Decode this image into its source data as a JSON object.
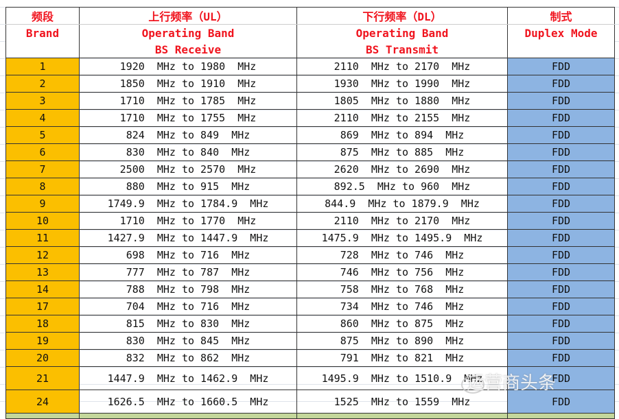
{
  "header": {
    "band": {
      "zh": "频段",
      "en": "Brand",
      "en2": ""
    },
    "ul": {
      "zh": "上行频率（UL）",
      "en": "Operating Band",
      "en2": "BS Receive"
    },
    "dl": {
      "zh": "下行频率（DL）",
      "en": "Operating Band",
      "en2": "BS Transmit"
    },
    "mode": {
      "zh": "制式",
      "en": "Duplex Mode",
      "en2": ""
    }
  },
  "colors": {
    "band_bg": "#fbbf00",
    "mode_bg": "#8db4e2",
    "header_text": "#f0141e",
    "footer_bg": "#c4d79b"
  },
  "rows": [
    {
      "band": "1",
      "ul": "1920  MHz to 1980  MHz",
      "dl": "2110  MHz to 2170  MHz",
      "mode": "FDD"
    },
    {
      "band": "2",
      "ul": "1850  MHz to 1910  MHz",
      "dl": "1930  MHz to 1990  MHz",
      "mode": "FDD"
    },
    {
      "band": "3",
      "ul": "1710  MHz to 1785  MHz",
      "dl": "1805  MHz to 1880  MHz",
      "mode": "FDD"
    },
    {
      "band": "4",
      "ul": "1710  MHz to 1755  MHz",
      "dl": "2110  MHz to 2155  MHz",
      "mode": "FDD"
    },
    {
      "band": "5",
      "ul": "824  MHz to 849  MHz",
      "dl": "869  MHz to 894  MHz",
      "mode": "FDD"
    },
    {
      "band": "6",
      "ul": "830  MHz to 840  MHz",
      "dl": "875  MHz to 885  MHz",
      "mode": "FDD"
    },
    {
      "band": "7",
      "ul": "2500  MHz to 2570  MHz",
      "dl": "2620  MHz to 2690  MHz",
      "mode": "FDD"
    },
    {
      "band": "8",
      "ul": "880  MHz to 915  MHz",
      "dl": "892.5  MHz to 960  MHz",
      "mode": "FDD"
    },
    {
      "band": "9",
      "ul": "1749.9  MHz to 1784.9  MHz",
      "dl": "844.9  MHz to 1879.9  MHz",
      "mode": "FDD"
    },
    {
      "band": "10",
      "ul": "1710  MHz to 1770  MHz",
      "dl": "2110  MHz to 2170  MHz",
      "mode": "FDD"
    },
    {
      "band": "11",
      "ul": "1427.9  MHz to 1447.9  MHz",
      "dl": "1475.9  MHz to 1495.9  MHz",
      "mode": "FDD"
    },
    {
      "band": "12",
      "ul": "698  MHz to 716  MHz",
      "dl": "728  MHz to 746  MHz",
      "mode": "FDD"
    },
    {
      "band": "13",
      "ul": "777  MHz to 787  MHz",
      "dl": "746  MHz to 756  MHz",
      "mode": "FDD"
    },
    {
      "band": "14",
      "ul": "788  MHz to 798  MHz",
      "dl": "758  MHz to 768  MHz",
      "mode": "FDD"
    },
    {
      "band": "17",
      "ul": "704  MHz to 716  MHz",
      "dl": "734  MHz to 746  MHz",
      "mode": "FDD"
    },
    {
      "band": "18",
      "ul": "815  MHz to 830  MHz",
      "dl": "860  MHz to 875  MHz",
      "mode": "FDD"
    },
    {
      "band": "19",
      "ul": "830  MHz to 845  MHz",
      "dl": "875  MHz to 890  MHz",
      "mode": "FDD"
    },
    {
      "band": "20",
      "ul": "832  MHz to 862  MHz",
      "dl": "791  MHz to 821  MHz",
      "mode": "FDD"
    },
    {
      "band": "21",
      "ul": "1447.9  MHz to 1462.9  MHz",
      "dl": "1495.9  MHz to 1510.9  MHz",
      "mode": "FDD"
    },
    {
      "band": "24",
      "ul": "1626.5  MHz to 1660.5  MHz",
      "dl": "1525  MHz to 1559  MHz",
      "mode": "FDD"
    }
  ],
  "watermark": "运营商头条"
}
